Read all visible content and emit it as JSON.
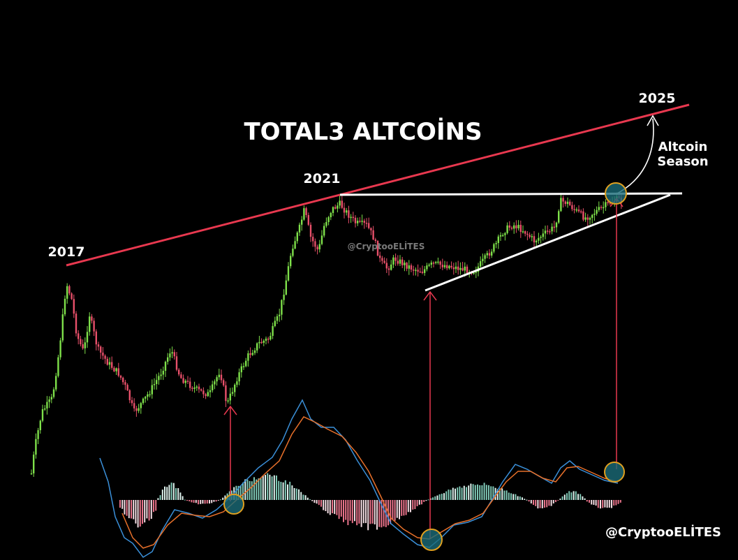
{
  "chart_data": {
    "type": "candlestick",
    "title": "TOTAL3 ALTCOİNS",
    "annotations": {
      "y2017": "2017",
      "y2021": "2021",
      "y2025": "2025",
      "season_line1": "Altcoin",
      "season_line2": "Season"
    },
    "watermark_center": "@CryptooELİTES",
    "watermark_corner": "@CryptooELİTES",
    "trendlines": {
      "resistance": "Rising resistance connecting 2017 and 2021 tops, projected to 2025",
      "horizontal": "2021 top horizontal resistance",
      "support": "Rising support line (ascending triangle)"
    },
    "colors": {
      "up": "#7ee04a",
      "down": "#e8506a",
      "resistance": "#e8384f",
      "triangle": "#ffffff",
      "macd": "#3a8fd8",
      "signal": "#e8702a",
      "hist_pos": "#7fc9b6",
      "hist_neg": "#e8738a",
      "marker_fill": "#1a6b78",
      "marker_ring": "#e0a020"
    },
    "indicator": "MACD"
  }
}
